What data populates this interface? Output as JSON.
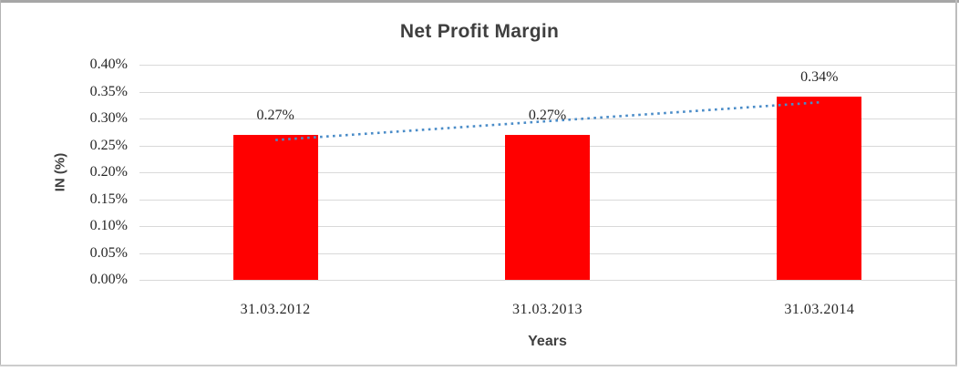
{
  "frame": {
    "background": "#ffffff",
    "border_top_color": "#a6a6a6",
    "border_side_color": "#b3b3b3"
  },
  "colors": {
    "bar": "#ff0000",
    "trendline": "#4a8cc8",
    "gridline": "#d9d9d9",
    "title_text": "#3f3f3f",
    "tick_text": "#262626"
  },
  "chart_data": {
    "type": "bar",
    "title": "Net Profit Margin",
    "xlabel": "Years",
    "ylabel": "IN (%)",
    "categories": [
      "31.03.2012",
      "31.03.2013",
      "31.03.2014"
    ],
    "series": [
      {
        "name": "Net Profit Margin",
        "color": "#ff0000",
        "values": [
          0.27,
          0.27,
          0.34
        ],
        "data_labels": [
          "0.27%",
          "0.27%",
          "0.34%"
        ]
      }
    ],
    "trendline": {
      "type": "linear",
      "line_style": "dotted",
      "color": "#4a8cc8",
      "start_value": 0.26,
      "end_value": 0.33
    },
    "ylim": [
      0,
      0.4
    ],
    "ytick_step": 0.05,
    "ytick_labels": [
      "0.40%",
      "0.35%",
      "0.30%",
      "0.25%",
      "0.20%",
      "0.15%",
      "0.10%",
      "0.05%",
      "0.00%"
    ],
    "grid": true,
    "gridline_color": "#d9d9d9",
    "legend": "none"
  }
}
